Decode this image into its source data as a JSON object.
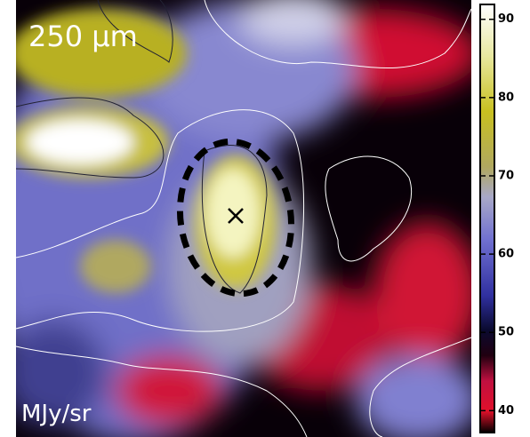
{
  "chart_data": {
    "type": "image",
    "title": "250 μm",
    "unit_label": "MJy/sr",
    "colorbar": {
      "clim": [
        37.2,
        91.9
      ],
      "ticks": [
        40,
        50,
        60,
        70,
        80,
        90
      ]
    }
  }
}
